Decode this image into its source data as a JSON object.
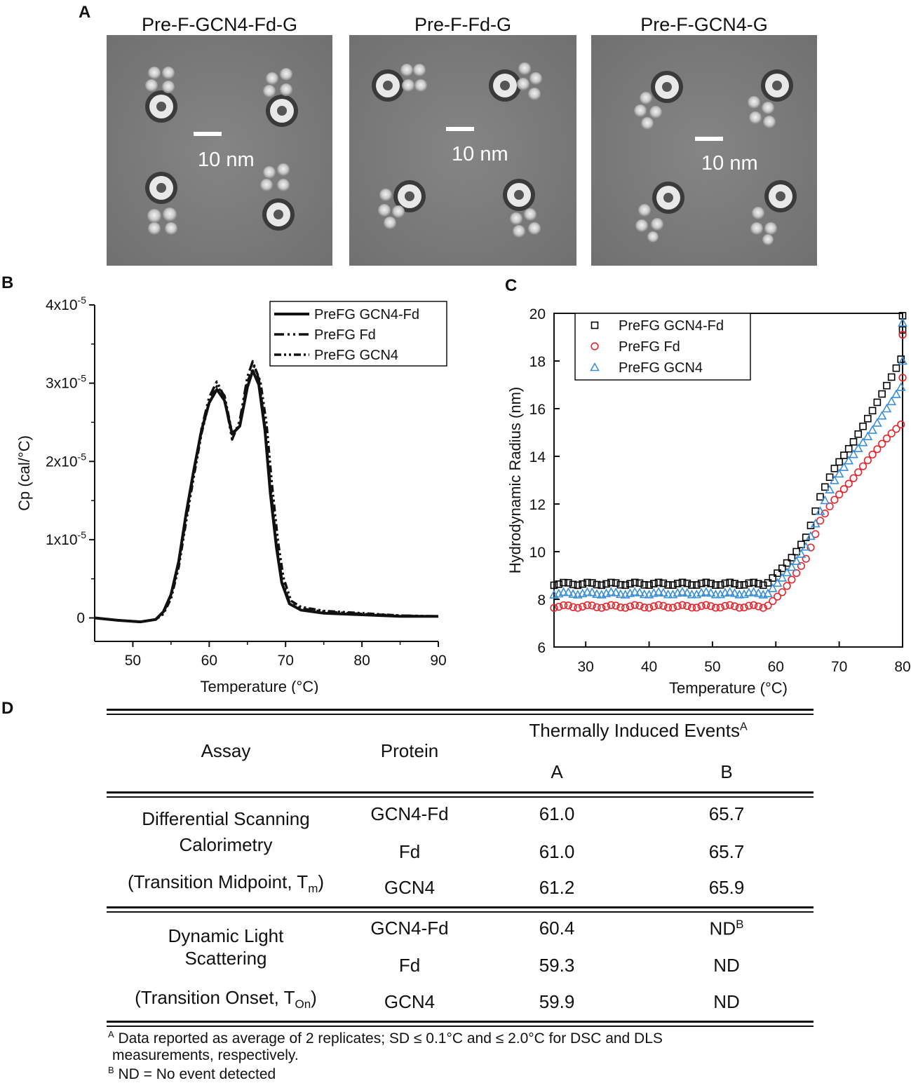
{
  "panel_letters": {
    "a": "A",
    "b": "B",
    "c": "C",
    "d": "D"
  },
  "panel_a": {
    "titles": [
      "Pre-F-GCN4-Fd-G",
      "Pre-F-Fd-G",
      "Pre-F-GCN4-G"
    ],
    "scale_label": "10 nm"
  },
  "chart_data": [
    {
      "id": "B",
      "type": "line",
      "title": "",
      "xlabel": "Temperature (°C)",
      "ylabel": "Cp (cal/°C)",
      "xlim": [
        45,
        90
      ],
      "ylim": [
        -3e-06,
        4e-05
      ],
      "x_ticks": [
        50,
        60,
        70,
        80,
        90
      ],
      "y_tick_labels": [
        "0",
        "1x10-5",
        "2x10-5",
        "3x10-5",
        "4x10-5"
      ],
      "legend_position": "top-right",
      "series": [
        {
          "name": "PreFG GCN4-Fd",
          "style": "solid",
          "x": [
            45,
            48,
            51,
            53,
            54,
            55,
            56,
            57,
            58,
            59,
            60,
            61,
            62,
            63,
            64,
            65,
            65.7,
            66.5,
            67.3,
            68,
            68.8,
            69.5,
            70.5,
            72,
            75,
            80,
            85,
            90
          ],
          "y": [
            0.0,
            -3e-07,
            -5e-07,
            -2e-07,
            8e-07,
            3e-06,
            7.2e-06,
            1.35e-05,
            1.9e-05,
            2.4e-05,
            2.75e-05,
            2.92e-05,
            2.78e-05,
            2.35e-05,
            2.45e-05,
            2.95e-05,
            3.16e-05,
            2.98e-05,
            2.4e-05,
            1.6e-05,
            9e-06,
            4.5e-06,
            1.8e-06,
            1e-06,
            6e-07,
            4e-07,
            2e-07,
            2e-07
          ]
        },
        {
          "name": "PreFG Fd",
          "style": "dash-dot-dot",
          "x": [
            45,
            48,
            51,
            53,
            54,
            55,
            56,
            57,
            58,
            59,
            60,
            61,
            62,
            63,
            64,
            65,
            65.7,
            66.5,
            67.3,
            68,
            68.8,
            69.5,
            70.5,
            72,
            75,
            80,
            85,
            90
          ],
          "y": [
            0.0,
            -3e-07,
            -5e-07,
            -2e-07,
            7e-07,
            2.8e-06,
            7e-06,
            1.3e-05,
            1.88e-05,
            2.42e-05,
            2.82e-05,
            3.02e-05,
            2.82e-05,
            2.28e-05,
            2.52e-05,
            3.08e-05,
            3.28e-05,
            3.05e-05,
            2.45e-05,
            1.7e-05,
            9.5e-06,
            5e-06,
            2e-06,
            1.2e-06,
            8e-07,
            5e-07,
            3e-07,
            2e-07
          ]
        },
        {
          "name": "PreFG GCN4",
          "style": "dash-dot-dot",
          "x": [
            45,
            48,
            51,
            53,
            54,
            55,
            56,
            57,
            58,
            59,
            60,
            61,
            62,
            63,
            64,
            65,
            65.9,
            66.7,
            67.5,
            68.2,
            69,
            69.7,
            70.7,
            72,
            75,
            80,
            85,
            90
          ],
          "y": [
            0.0,
            -3e-07,
            -5e-07,
            -2e-07,
            5e-07,
            2.5e-06,
            6.5e-06,
            1.25e-05,
            1.82e-05,
            2.36e-05,
            2.76e-05,
            2.96e-05,
            2.84e-05,
            2.36e-05,
            2.46e-05,
            3.02e-05,
            3.22e-05,
            3.02e-05,
            2.48e-05,
            1.72e-05,
            9.8e-06,
            5.2e-06,
            2.2e-06,
            1.4e-06,
            9e-07,
            6e-07,
            3e-07,
            2e-07
          ]
        }
      ]
    },
    {
      "id": "C",
      "type": "scatter",
      "title": "",
      "xlabel": "Temperature (°C)",
      "ylabel": "Hydrodynamic Radius (nm)",
      "xlim": [
        25,
        80
      ],
      "ylim": [
        6,
        20
      ],
      "x_ticks": [
        30,
        40,
        50,
        60,
        70,
        80
      ],
      "y_ticks": [
        6,
        8,
        10,
        12,
        14,
        16,
        18,
        20
      ],
      "legend_position": "top-left",
      "series": [
        {
          "name": "PreFG GCN4-Fd",
          "marker": "square",
          "color": "#000000",
          "x_start": 25,
          "x_step": 0.75,
          "plateau": 8.65,
          "onset": 58.6,
          "curve_x": [
            58.6,
            61,
            63,
            65,
            67,
            69,
            72,
            75,
            78,
            80
          ],
          "curve_y": [
            8.65,
            9.3,
            9.9,
            10.7,
            12.3,
            13.4,
            14.5,
            15.8,
            17.2,
            18.2
          ],
          "extra_x": [
            80,
            80
          ],
          "extra_y": [
            19.3,
            19.9
          ]
        },
        {
          "name": "PreFG Fd",
          "marker": "circle",
          "color": "#e8242a",
          "x_start": 25,
          "x_step": 0.75,
          "plateau": 7.7,
          "onset": 58.6,
          "curve_x": [
            58.6,
            61,
            63,
            65,
            67,
            69,
            72,
            75,
            78,
            80
          ],
          "curve_y": [
            7.7,
            8.3,
            9.0,
            9.8,
            11.3,
            12.1,
            13.0,
            14.0,
            14.9,
            15.4
          ],
          "extra_x": [
            80,
            80
          ],
          "extra_y": [
            17.3,
            19.1
          ]
        },
        {
          "name": "PreFG GCN4",
          "marker": "triangle",
          "color": "#3a8fd6",
          "x_start": 25,
          "x_step": 0.75,
          "plateau": 8.25,
          "onset": 58.6,
          "curve_x": [
            58.6,
            61,
            63,
            65,
            67,
            69,
            72,
            75,
            78,
            80
          ],
          "curve_y": [
            8.2,
            8.9,
            9.5,
            10.3,
            11.7,
            12.9,
            14.0,
            15.0,
            16.2,
            17.0
          ],
          "extra_x": [
            80,
            80
          ],
          "extra_y": [
            18.0,
            19.6
          ]
        }
      ]
    }
  ],
  "table": {
    "headers": {
      "assay": "Assay",
      "protein": "Protein",
      "events": "Thermally Induced Events",
      "events_sup": "A",
      "col_a": "A",
      "col_b": "B"
    },
    "groups": [
      {
        "assay_lines": [
          "Differential Scanning",
          "Calorimetry",
          "(Transition Midpoint, T",
          "m",
          ")"
        ],
        "rows": [
          {
            "protein": "GCN4-Fd",
            "a": "61.0",
            "b": "65.7",
            "b_sup": ""
          },
          {
            "protein": "Fd",
            "a": "61.0",
            "b": "65.7",
            "b_sup": ""
          },
          {
            "protein": "GCN4",
            "a": "61.2",
            "b": "65.9",
            "b_sup": ""
          }
        ]
      },
      {
        "assay_lines": [
          "Dynamic Light",
          "Scattering",
          "(Transition Onset, T",
          "On",
          ")"
        ],
        "rows": [
          {
            "protein": "GCN4-Fd",
            "a": "60.4",
            "b": "ND",
            "b_sup": "B"
          },
          {
            "protein": "Fd",
            "a": "59.3",
            "b": "ND",
            "b_sup": ""
          },
          {
            "protein": "GCN4",
            "a": "59.9",
            "b": "ND",
            "b_sup": ""
          }
        ]
      }
    ],
    "footnotes": [
      {
        "mark": "A",
        "text": " Data reported as average of 2 replicates; SD ≤ 0.1°C and ≤ 2.0°C for DSC and DLS"
      },
      {
        "mark": "",
        "text": "measurements, respectively."
      },
      {
        "mark": "B",
        "text": " ND = No event detected"
      }
    ]
  }
}
